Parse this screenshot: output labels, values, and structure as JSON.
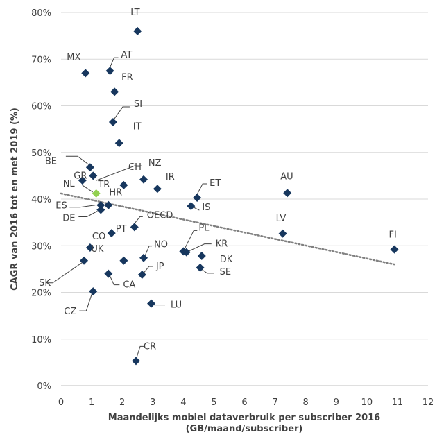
{
  "chart_data": {
    "type": "scatter",
    "title": "",
    "xlabel": "Maandelijks mobiel dataverbruik per subscriber 2016",
    "xlabel_line2": "(GB/maand/subscriber)",
    "ylabel": "CAGR van 2016 tot en met 2019 (%)",
    "xlim": [
      0,
      12
    ],
    "ylim": [
      0,
      80
    ],
    "x_ticks": [
      "0",
      "1",
      "2",
      "3",
      "4",
      "5",
      "6",
      "7",
      "8",
      "9",
      "10",
      "11",
      "12"
    ],
    "y_ticks": [
      "0%",
      "10%",
      "20%",
      "30%",
      "40%",
      "50%",
      "60%",
      "70%",
      "80%"
    ],
    "grid": "horizontal",
    "colors": {
      "point": "#17375e",
      "highlight": "#92d050",
      "trend": "#808080",
      "grid": "#d9d9d9",
      "axis": "#bfbfbf"
    },
    "trendline": {
      "style": "dotted",
      "from": [
        0,
        41.2
      ],
      "to": [
        10.9,
        26
      ]
    },
    "points": [
      {
        "label": "LT",
        "x": 2.5,
        "y": 76
      },
      {
        "label": "MX",
        "x": 0.8,
        "y": 67
      },
      {
        "label": "AT",
        "x": 1.6,
        "y": 67.5
      },
      {
        "label": "FR",
        "x": 1.75,
        "y": 63
      },
      {
        "label": "SI",
        "x": 1.7,
        "y": 56.5
      },
      {
        "label": "IT",
        "x": 1.9,
        "y": 52
      },
      {
        "label": "BE",
        "x": 0.95,
        "y": 46.8
      },
      {
        "label": "GR",
        "x": 1.05,
        "y": 45
      },
      {
        "label": "NZ",
        "x": 0.7,
        "y": 44
      },
      {
        "label": "CH",
        "x": 2.7,
        "y": 44.2
      },
      {
        "label": "TR",
        "x": 2.05,
        "y": 43
      },
      {
        "label": "IR",
        "x": 3.15,
        "y": 42.2
      },
      {
        "label": "NL",
        "x": 1.15,
        "y": 41.2,
        "highlight": true
      },
      {
        "label": "ET",
        "x": 4.45,
        "y": 40.3
      },
      {
        "label": "AU",
        "x": 7.4,
        "y": 41.3
      },
      {
        "label": "IS",
        "x": 4.25,
        "y": 38.5
      },
      {
        "label": "HR",
        "x": 1.55,
        "y": 38.7
      },
      {
        "label": "ES",
        "x": 1.3,
        "y": 38.7
      },
      {
        "label": "DE",
        "x": 1.3,
        "y": 37.7
      },
      {
        "label": "OECD",
        "x": 2.4,
        "y": 34
      },
      {
        "label": "PT",
        "x": 1.65,
        "y": 32.7
      },
      {
        "label": "LV",
        "x": 7.25,
        "y": 32.6
      },
      {
        "label": "FI",
        "x": 10.9,
        "y": 29.2
      },
      {
        "label": "PL",
        "x": 4.0,
        "y": 28.8
      },
      {
        "label": "KR",
        "x": 4.1,
        "y": 28.6
      },
      {
        "label": "CO",
        "x": 0.95,
        "y": 29.6
      },
      {
        "label": "NO",
        "x": 2.7,
        "y": 27.4
      },
      {
        "label": "DK",
        "x": 4.6,
        "y": 27.8
      },
      {
        "label": "UK",
        "x": 2.05,
        "y": 26.8
      },
      {
        "label": "SK",
        "x": 0.75,
        "y": 26.8
      },
      {
        "label": "SE",
        "x": 4.55,
        "y": 25.3
      },
      {
        "label": "JP",
        "x": 2.65,
        "y": 23.8
      },
      {
        "label": "CA",
        "x": 1.55,
        "y": 24
      },
      {
        "label": "CZ",
        "x": 1.05,
        "y": 20.2
      },
      {
        "label": "LU",
        "x": 2.95,
        "y": 17.6
      },
      {
        "label": "CR",
        "x": 2.45,
        "y": 5.3
      }
    ]
  }
}
